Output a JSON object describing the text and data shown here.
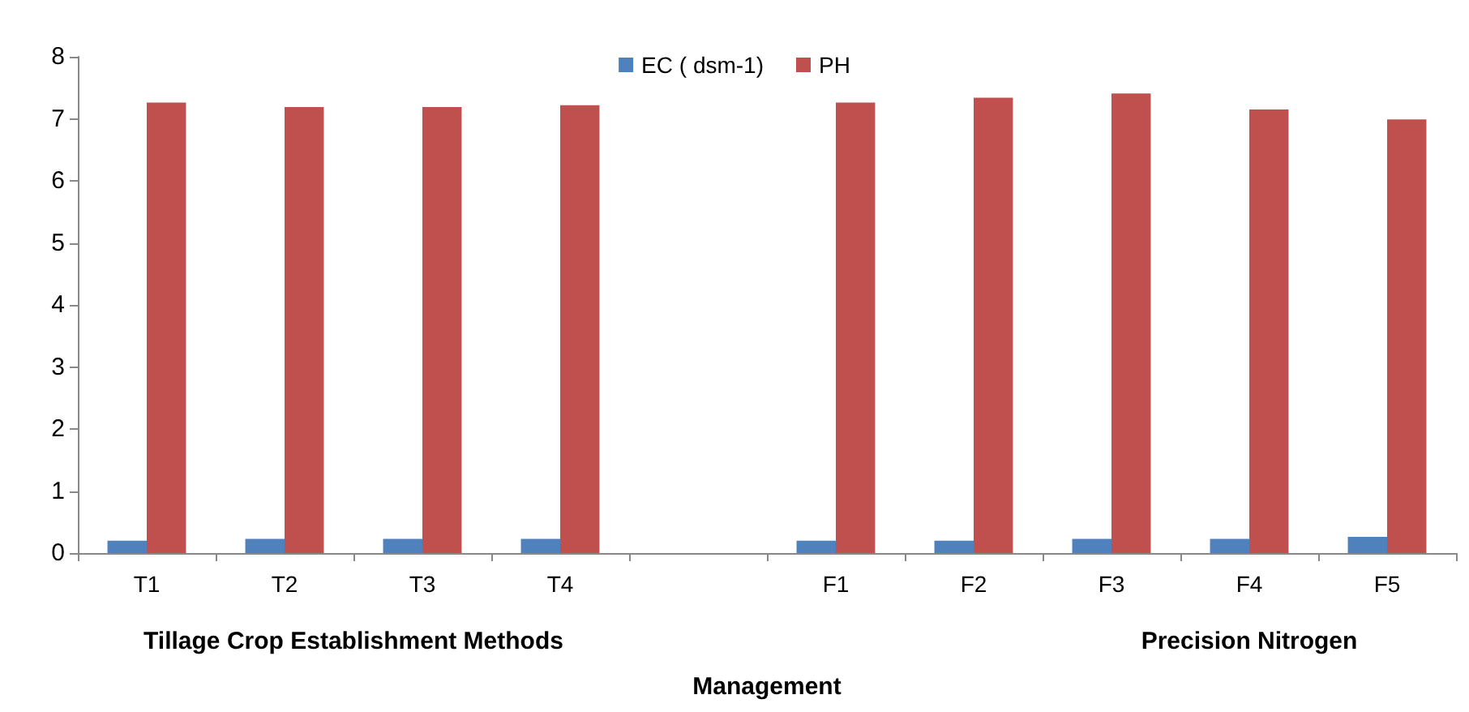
{
  "chart_data": {
    "type": "bar",
    "xlabel": "Management",
    "categories": [
      "T1",
      "T2",
      "T3",
      "T4",
      null,
      "F1",
      "F2",
      "F3",
      "F4",
      "F5"
    ],
    "series": [
      {
        "name": "EC ( dsm-1)",
        "color": "#4f81bd",
        "values": [
          0.2,
          0.23,
          0.23,
          0.23,
          null,
          0.2,
          0.2,
          0.23,
          0.23,
          0.26
        ]
      },
      {
        "name": "PH",
        "color": "#c0504d",
        "values": [
          7.26,
          7.19,
          7.19,
          7.22,
          null,
          7.26,
          7.34,
          7.41,
          7.15,
          6.99
        ]
      }
    ],
    "annotations": [
      "Tillage Crop Establishment Methods",
      "Precision Nitrogen"
    ],
    "ylim": [
      0,
      8
    ],
    "yticks": [
      0,
      1,
      2,
      3,
      4,
      5,
      6,
      7,
      8
    ],
    "grid": false,
    "legend": "top"
  }
}
